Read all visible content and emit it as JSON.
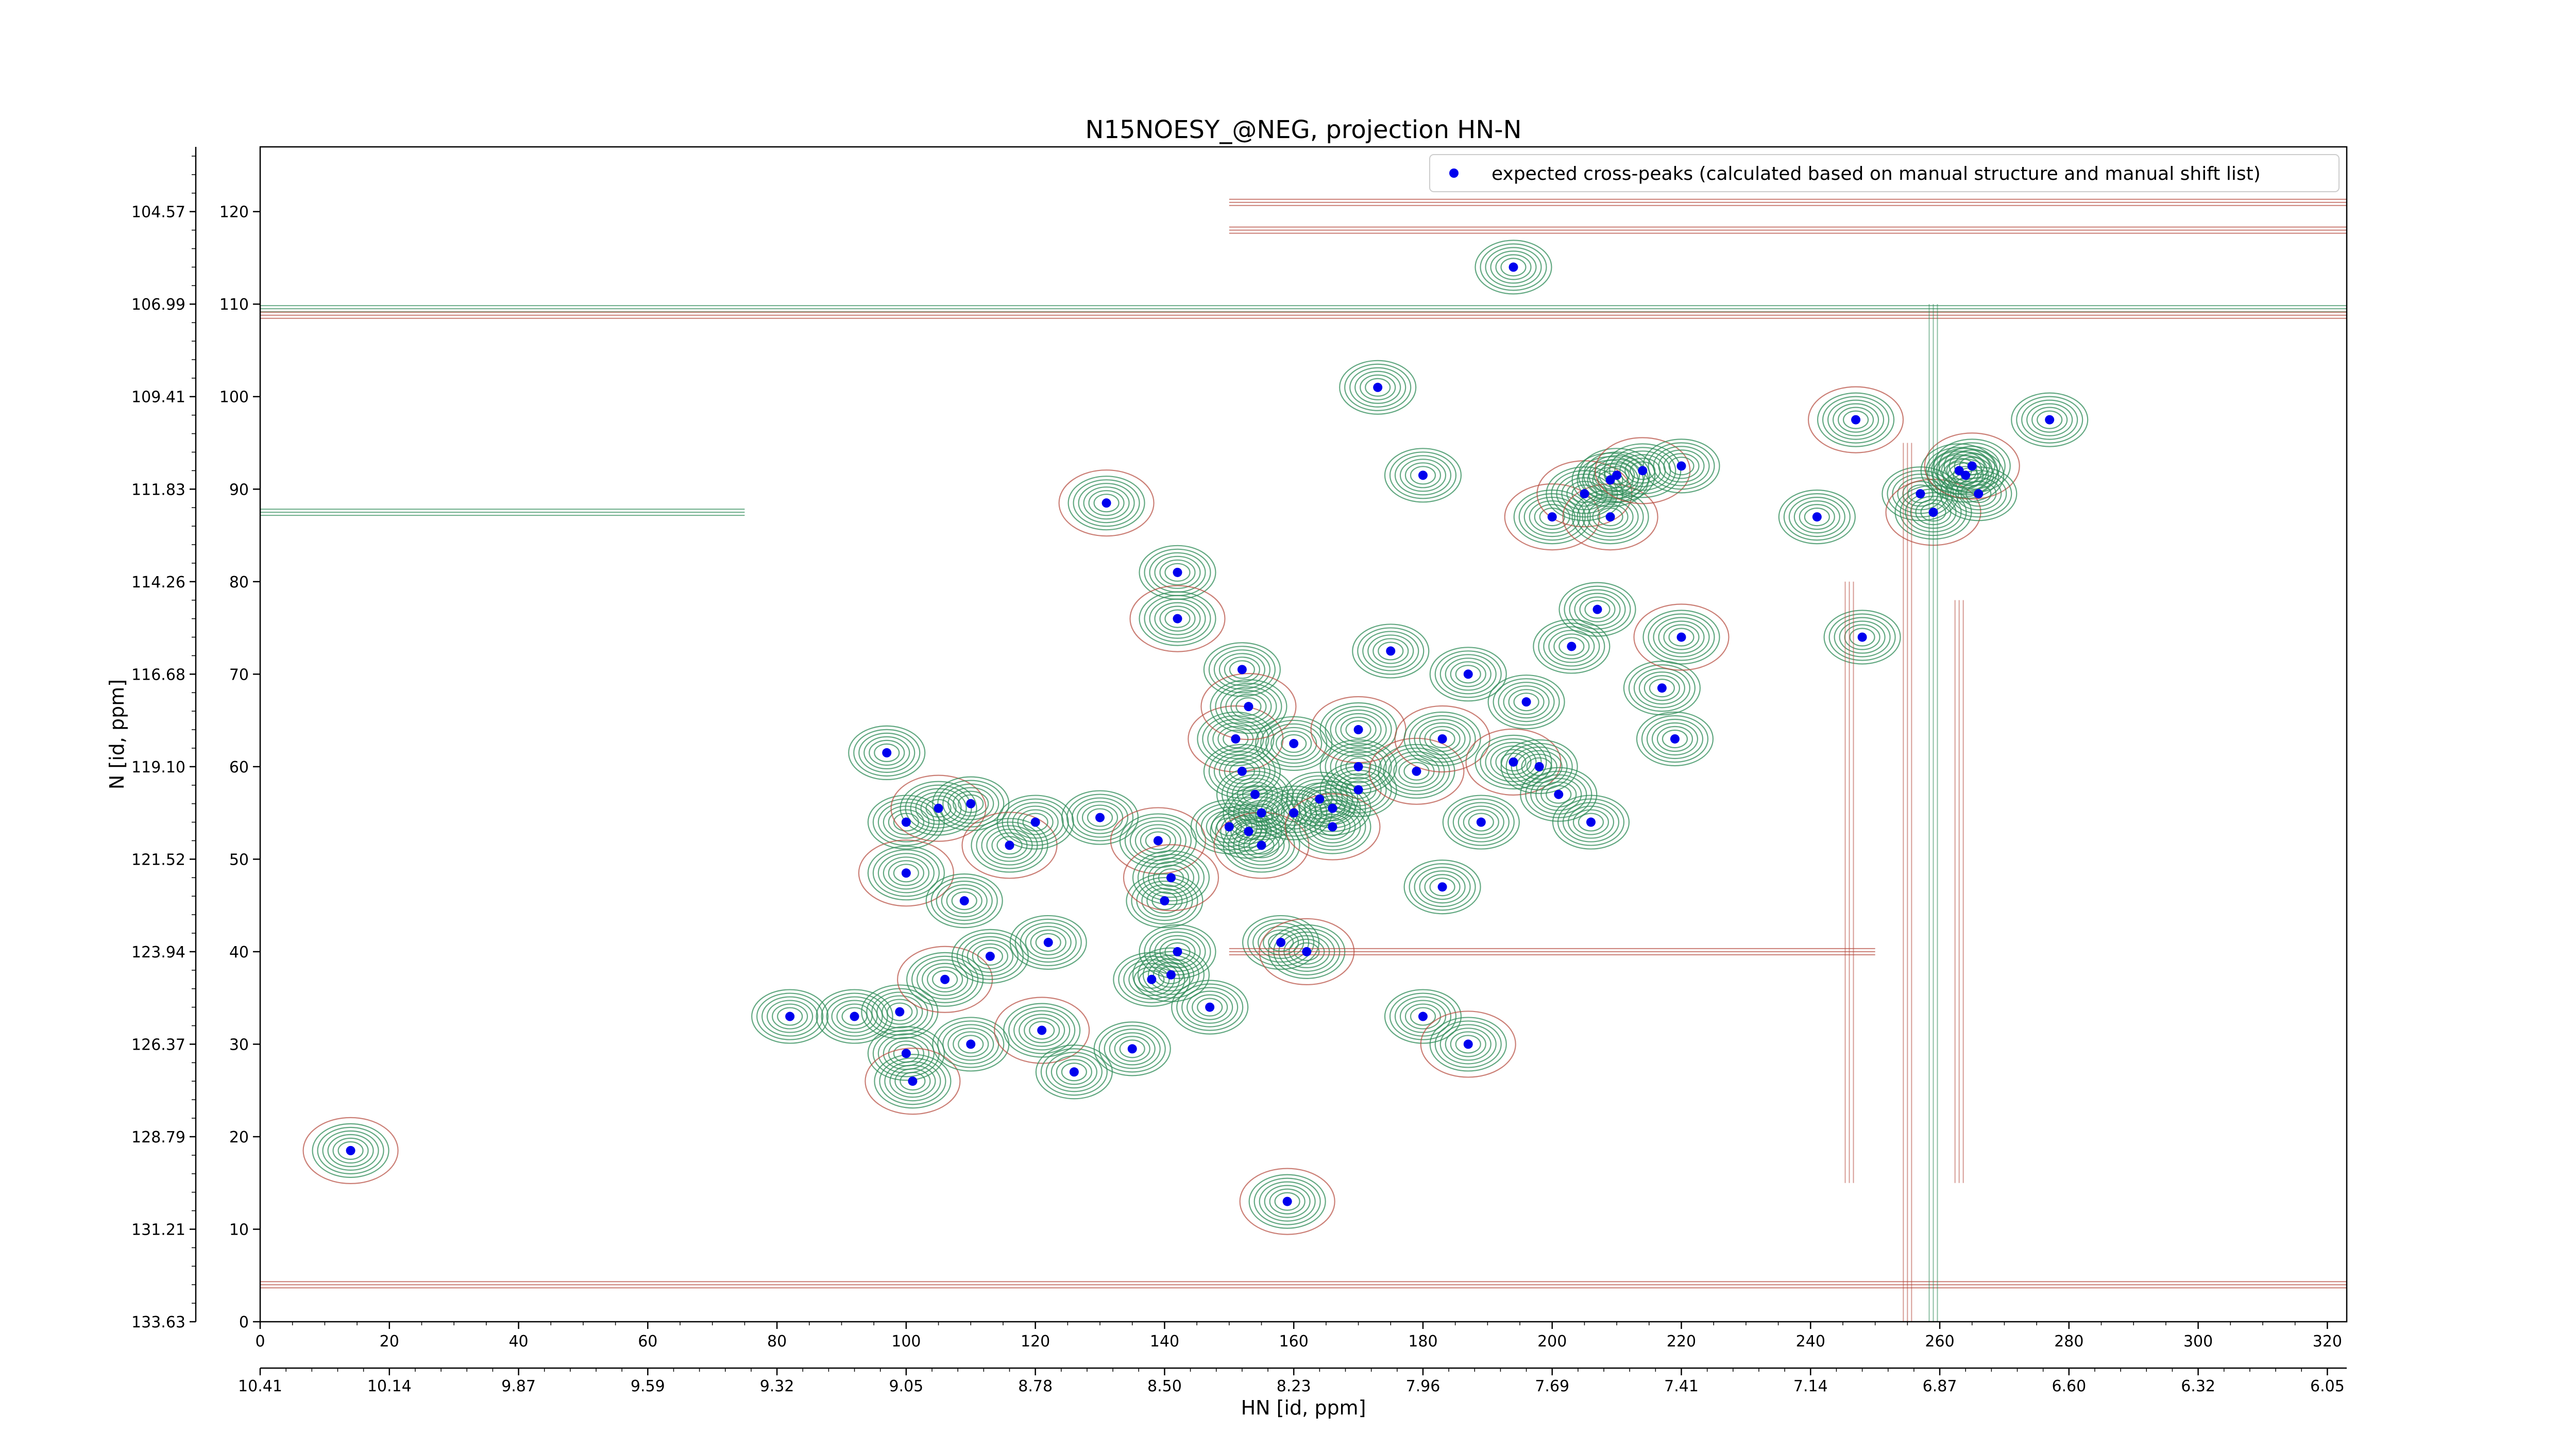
{
  "chart_data": {
    "type": "scatter",
    "title": "N15NOESY_@NEG, projection HN-N",
    "xlabel": "HN [id, ppm]",
    "ylabel": "N [id, ppm]",
    "xlim": [
      0,
      323
    ],
    "ylim": [
      0,
      127
    ],
    "x_ticks": [
      0,
      20,
      40,
      60,
      80,
      100,
      120,
      140,
      160,
      180,
      200,
      220,
      240,
      260,
      280,
      300,
      320
    ],
    "y_ticks": [
      0,
      10,
      20,
      30,
      40,
      50,
      60,
      70,
      80,
      90,
      100,
      110,
      120
    ],
    "ppm_x_ticks": [
      {
        "index": 0,
        "label": "10.41"
      },
      {
        "index": 20,
        "label": "10.14"
      },
      {
        "index": 40,
        "label": "9.87"
      },
      {
        "index": 60,
        "label": "9.59"
      },
      {
        "index": 80,
        "label": "9.32"
      },
      {
        "index": 100,
        "label": "9.05"
      },
      {
        "index": 120,
        "label": "8.78"
      },
      {
        "index": 140,
        "label": "8.50"
      },
      {
        "index": 160,
        "label": "8.23"
      },
      {
        "index": 180,
        "label": "7.96"
      },
      {
        "index": 200,
        "label": "7.69"
      },
      {
        "index": 220,
        "label": "7.41"
      },
      {
        "index": 240,
        "label": "7.14"
      },
      {
        "index": 260,
        "label": "6.87"
      },
      {
        "index": 280,
        "label": "6.60"
      },
      {
        "index": 300,
        "label": "6.32"
      },
      {
        "index": 320,
        "label": "6.05"
      }
    ],
    "ppm_y_ticks": [
      {
        "index": 0,
        "label": "133.63"
      },
      {
        "index": 10,
        "label": "131.21"
      },
      {
        "index": 20,
        "label": "128.79"
      },
      {
        "index": 30,
        "label": "126.37"
      },
      {
        "index": 40,
        "label": "123.94"
      },
      {
        "index": 50,
        "label": "121.52"
      },
      {
        "index": 60,
        "label": "119.10"
      },
      {
        "index": 70,
        "label": "116.68"
      },
      {
        "index": 80,
        "label": "114.26"
      },
      {
        "index": 90,
        "label": "111.83"
      },
      {
        "index": 100,
        "label": "109.41"
      },
      {
        "index": 110,
        "label": "106.99"
      },
      {
        "index": 120,
        "label": "104.57"
      }
    ],
    "legend": {
      "position": "top-right",
      "label": "expected cross-peaks (calculated based on manual structure and manual shift list)"
    },
    "colors": {
      "marker": "#0000ee",
      "positive_contour": "#2e8b57",
      "negative_contour": "#b5483c",
      "axes": "#000000",
      "background": "#ffffff"
    },
    "grid": false,
    "points": [
      [
        14,
        18.5
      ],
      [
        97,
        61.5
      ],
      [
        100,
        54
      ],
      [
        100,
        48.5
      ],
      [
        99,
        33.5
      ],
      [
        100,
        29
      ],
      [
        101,
        26
      ],
      [
        92,
        33
      ],
      [
        82,
        33
      ],
      [
        105,
        55.5
      ],
      [
        110,
        56
      ],
      [
        109,
        45.5
      ],
      [
        106,
        37
      ],
      [
        113,
        39.5
      ],
      [
        110,
        30
      ],
      [
        116,
        51.5
      ],
      [
        120,
        54
      ],
      [
        122,
        41
      ],
      [
        121,
        31.5
      ],
      [
        126,
        27
      ],
      [
        130,
        54.5
      ],
      [
        131,
        88.5
      ],
      [
        135,
        29.5
      ],
      [
        138,
        37
      ],
      [
        139,
        52
      ],
      [
        140,
        45.5
      ],
      [
        141,
        37.5
      ],
      [
        141,
        48
      ],
      [
        142,
        40
      ],
      [
        142,
        81
      ],
      [
        142,
        76
      ],
      [
        147,
        34
      ],
      [
        150,
        53.5
      ],
      [
        151,
        63
      ],
      [
        152,
        59.5
      ],
      [
        152,
        70.5
      ],
      [
        153,
        66.5
      ],
      [
        153,
        53
      ],
      [
        154,
        57
      ],
      [
        155,
        51.5
      ],
      [
        155,
        55
      ],
      [
        158,
        41
      ],
      [
        159,
        13
      ],
      [
        160,
        55
      ],
      [
        160,
        62.5
      ],
      [
        162,
        40
      ],
      [
        164,
        56.5
      ],
      [
        166,
        55.5
      ],
      [
        166,
        53.5
      ],
      [
        170,
        57.5
      ],
      [
        170,
        60
      ],
      [
        170,
        64
      ],
      [
        173,
        101
      ],
      [
        175,
        72.5
      ],
      [
        179,
        59.5
      ],
      [
        180,
        91.5
      ],
      [
        180,
        33
      ],
      [
        183,
        63
      ],
      [
        183,
        47
      ],
      [
        187,
        70
      ],
      [
        187,
        30
      ],
      [
        189,
        54
      ],
      [
        194,
        114
      ],
      [
        194,
        60.5
      ],
      [
        196,
        67
      ],
      [
        198,
        60
      ],
      [
        200,
        87
      ],
      [
        201,
        57
      ],
      [
        203,
        73
      ],
      [
        205,
        89.5
      ],
      [
        206,
        54
      ],
      [
        207,
        77
      ],
      [
        209,
        87
      ],
      [
        209,
        91
      ],
      [
        210,
        91.5
      ],
      [
        214,
        92
      ],
      [
        220,
        92.5
      ],
      [
        217,
        68.5
      ],
      [
        220,
        74
      ],
      [
        219,
        63
      ],
      [
        241,
        87
      ],
      [
        247,
        97.5
      ],
      [
        248,
        74
      ],
      [
        257,
        89.5
      ],
      [
        259,
        87.5
      ],
      [
        263,
        92
      ],
      [
        264,
        91.5
      ],
      [
        265,
        92.5
      ],
      [
        266,
        89.5
      ],
      [
        277,
        97.5
      ]
    ]
  }
}
